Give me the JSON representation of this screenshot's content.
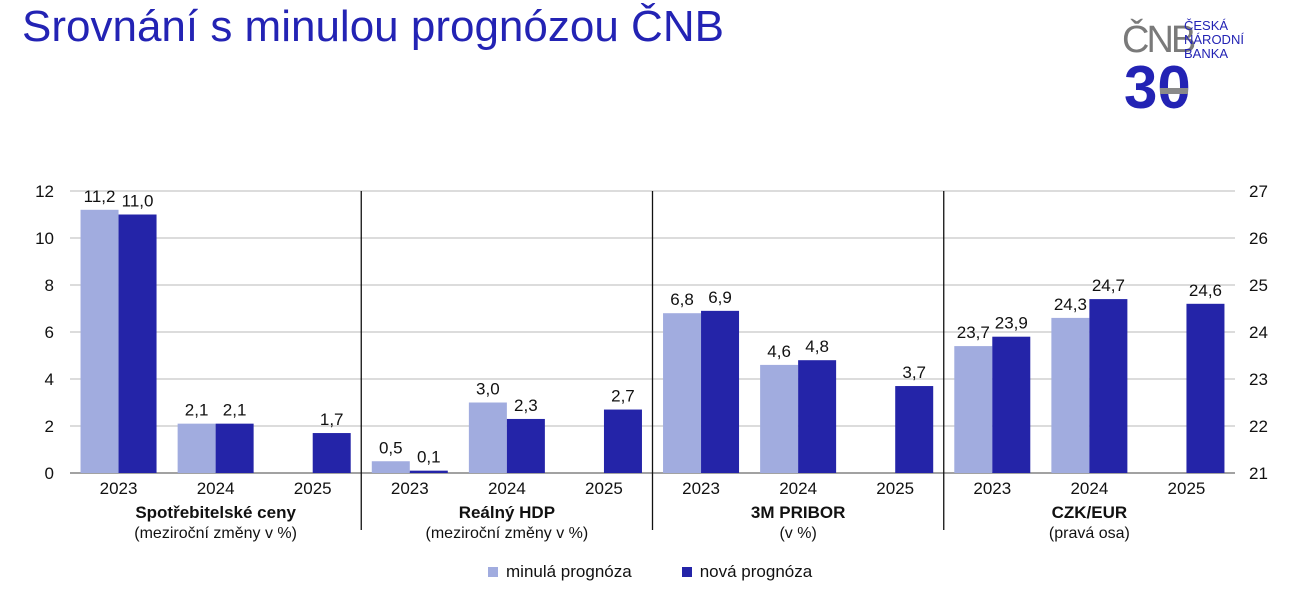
{
  "title": "Srovnání s minulou prognózou ČNB",
  "logo": {
    "mark": "ČNB",
    "number": "30",
    "line1": "ČESKÁ",
    "line2": "NÁRODNÍ",
    "line3": "BANKA"
  },
  "colors": {
    "brand": "#2323b4",
    "previous": "#a1acdf",
    "new": "#2424a8"
  },
  "legend": {
    "previous": "minulá prognóza",
    "new": "nová prognóza"
  },
  "chart_data": {
    "type": "bar",
    "years": [
      "2023",
      "2024",
      "2025"
    ],
    "left_axis": {
      "ylim": [
        0,
        12
      ],
      "ticks": [
        "0",
        "2",
        "4",
        "6",
        "8",
        "10",
        "12"
      ]
    },
    "right_axis": {
      "ylim": [
        21,
        27
      ],
      "ticks": [
        "21",
        "22",
        "23",
        "24",
        "25",
        "26",
        "27"
      ]
    },
    "grid": true,
    "legend_position": "bottom",
    "series_names": [
      "minulá prognóza",
      "nová prognóza"
    ],
    "groups": [
      {
        "name": "Spotřebitelské ceny",
        "sub": "(meziroční změny v %)",
        "axis": "left",
        "previous": [
          11.2,
          2.1,
          null
        ],
        "new": [
          11.0,
          2.1,
          1.7
        ],
        "previous_labels": [
          "11,2",
          "2,1",
          ""
        ],
        "new_labels": [
          "11,0",
          "2,1",
          "1,7"
        ]
      },
      {
        "name": "Reálný HDP",
        "sub": "(meziroční změny v %)",
        "axis": "left",
        "previous": [
          0.5,
          3.0,
          null
        ],
        "new": [
          0.1,
          2.3,
          2.7
        ],
        "previous_labels": [
          "0,5",
          "3,0",
          ""
        ],
        "new_labels": [
          "0,1",
          "2,3",
          "2,7"
        ]
      },
      {
        "name": "3M PRIBOR",
        "sub": "(v %)",
        "axis": "left",
        "previous": [
          6.8,
          4.6,
          null
        ],
        "new": [
          6.9,
          4.8,
          3.7
        ],
        "previous_labels": [
          "6,8",
          "4,6",
          ""
        ],
        "new_labels": [
          "6,9",
          "4,8",
          "3,7"
        ]
      },
      {
        "name": "CZK/EUR",
        "sub": "(pravá osa)",
        "axis": "right",
        "previous": [
          23.7,
          24.3,
          null
        ],
        "new": [
          23.9,
          24.7,
          24.6
        ],
        "previous_labels": [
          "23,7",
          "24,3",
          ""
        ],
        "new_labels": [
          "23,9",
          "24,7",
          "24,6"
        ]
      }
    ]
  }
}
